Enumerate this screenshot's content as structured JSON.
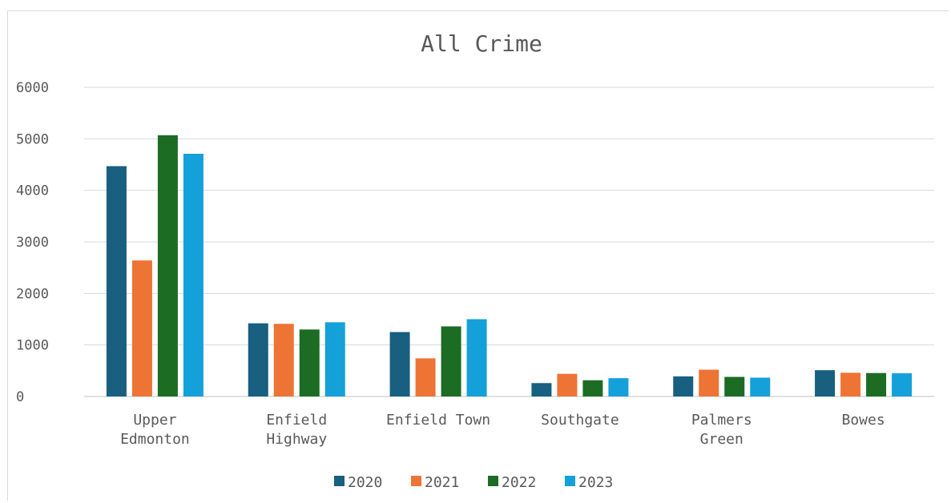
{
  "chart_data": {
    "type": "bar",
    "title": "All Crime",
    "xlabel": "",
    "ylabel": "",
    "ylim": [
      0,
      6000
    ],
    "yticks": [
      "0",
      "1000",
      "2000",
      "3000",
      "4000",
      "5000",
      "6000"
    ],
    "grid": true,
    "legend_position": "bottom",
    "categories": [
      [
        "Upper",
        "Edmonton"
      ],
      [
        "Enfield",
        "Highway"
      ],
      [
        "Enfield Town"
      ],
      [
        "Southgate"
      ],
      [
        "Palmers",
        "Green"
      ],
      [
        "Bowes"
      ]
    ],
    "series": [
      {
        "name": "2020",
        "color": "#185f80",
        "values": [
          4470,
          1420,
          1250,
          260,
          390,
          510
        ]
      },
      {
        "name": "2021",
        "color": "#ed7435",
        "values": [
          2640,
          1410,
          740,
          440,
          520,
          460
        ]
      },
      {
        "name": "2022",
        "color": "#1c6c24",
        "values": [
          5070,
          1300,
          1360,
          315,
          380,
          455
        ]
      },
      {
        "name": "2023",
        "color": "#14a0d8",
        "values": [
          4710,
          1440,
          1500,
          355,
          365,
          450
        ]
      }
    ]
  }
}
